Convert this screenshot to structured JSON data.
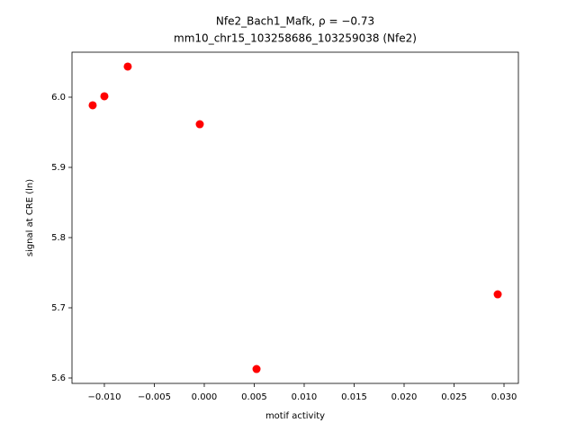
{
  "chart_data": {
    "type": "scatter",
    "title": "Nfe2_Bach1_Mafk, ρ = −0.73",
    "subtitle": "mm10_chr15_103258686_103259038 (Nfe2)",
    "x_label": "motif activity",
    "y_label": "signal at CRE (ln)",
    "color": "#ff0000",
    "x": [
      -0.01117,
      -0.01,
      -0.00766,
      -0.00045,
      0.00523,
      0.02937
    ],
    "values": [
      5.9885,
      6.0013,
      6.0436,
      5.9615,
      5.6128,
      5.7192
    ],
    "xlim": [
      -0.01324,
      0.03144
    ],
    "ylim": [
      5.5923,
      6.0641
    ],
    "xticks": [
      {
        "value": -0.01,
        "label": "−0.010"
      },
      {
        "value": -0.005,
        "label": "−0.005"
      },
      {
        "value": 0,
        "label": "0.000"
      },
      {
        "value": 0.005,
        "label": "0.005"
      },
      {
        "value": 0.01,
        "label": "0.010"
      },
      {
        "value": 0.015,
        "label": "0.015"
      },
      {
        "value": 0.02,
        "label": "0.020"
      },
      {
        "value": 0.025,
        "label": "0.025"
      },
      {
        "value": 0.03,
        "label": "0.030"
      }
    ],
    "yticks": [
      5.6,
      5.7,
      5.8,
      5.9,
      {
        "value": 6,
        "label": "6.0"
      }
    ]
  }
}
